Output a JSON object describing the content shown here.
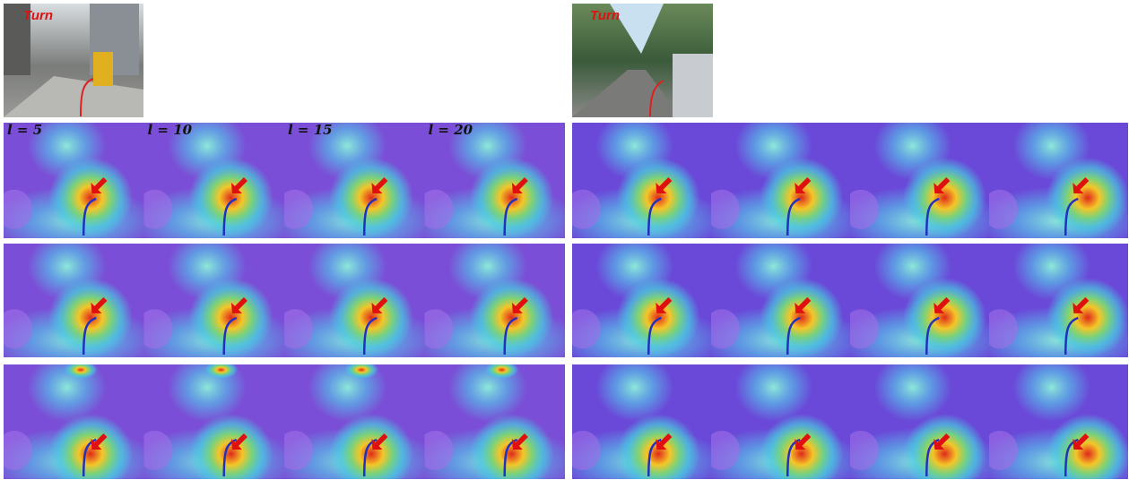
{
  "left": {
    "label": "Turn",
    "layer_labels": [
      "l = 5",
      "l = 10",
      "l = 15",
      "l = 20"
    ]
  },
  "right": {
    "label": "Turn"
  }
}
